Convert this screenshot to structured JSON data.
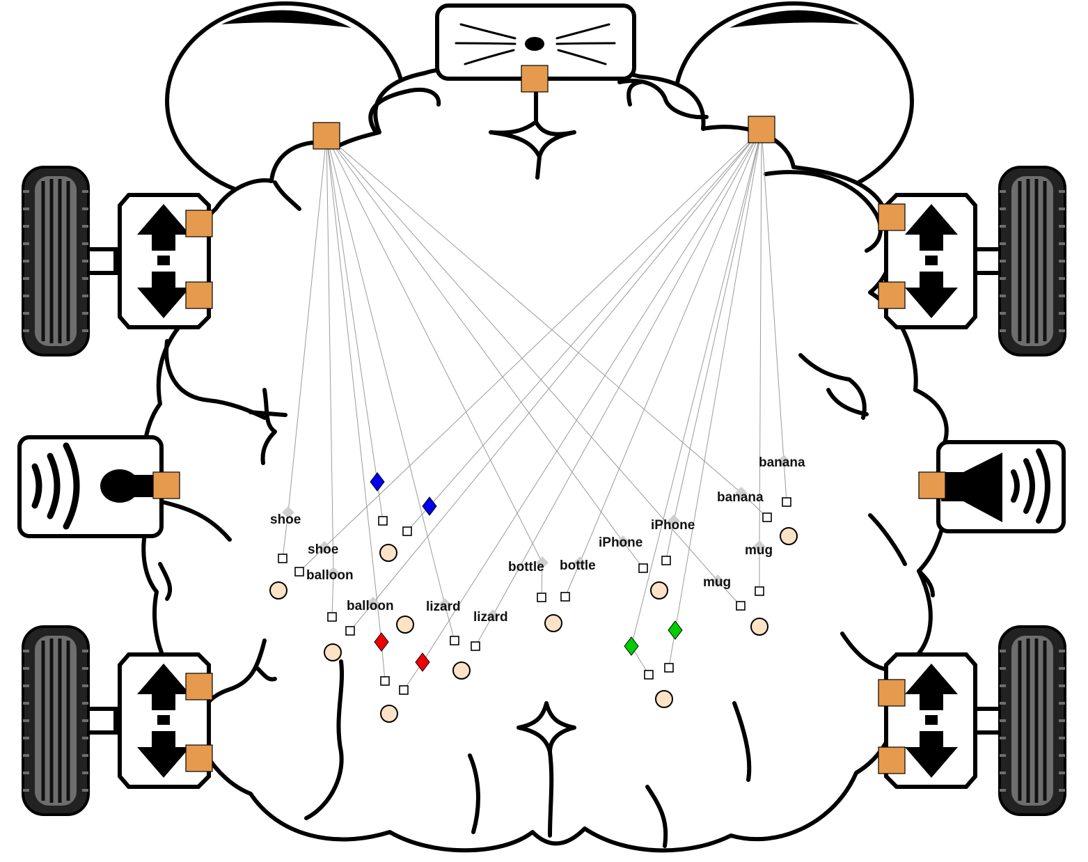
{
  "colors": {
    "port": "#e59a4d",
    "connection": "#9a9a9a",
    "blue_node": "#0000ee",
    "red_node": "#ee0000",
    "green_node": "#00cc00",
    "gray_node": "#cfcfcf",
    "output_circle": "#fde2c6",
    "tire": "#6e6e6e"
  },
  "icons": {
    "left_eye": "eye-icon",
    "right_eye": "eye-icon",
    "nose": "whisker-nose-icon",
    "microphone": "microphone-icon",
    "speaker": "speaker-icon",
    "wheel": "wheel-icon",
    "motor": "up-down-arrows-icon"
  },
  "labels": [
    {
      "id": "shoe-1",
      "text": "shoe"
    },
    {
      "id": "shoe-2",
      "text": "shoe"
    },
    {
      "id": "balloon-1",
      "text": "balloon"
    },
    {
      "id": "balloon-2",
      "text": "balloon"
    },
    {
      "id": "lizard-1",
      "text": "lizard"
    },
    {
      "id": "lizard-2",
      "text": "lizard"
    },
    {
      "id": "bottle-1",
      "text": "bottle"
    },
    {
      "id": "bottle-2",
      "text": "bottle"
    },
    {
      "id": "iphone-1",
      "text": "iPhone"
    },
    {
      "id": "iphone-2",
      "text": "iPhone"
    },
    {
      "id": "mug-1",
      "text": "mug"
    },
    {
      "id": "mug-2",
      "text": "mug"
    },
    {
      "id": "banana-1",
      "text": "banana"
    },
    {
      "id": "banana-2",
      "text": "banana"
    }
  ]
}
